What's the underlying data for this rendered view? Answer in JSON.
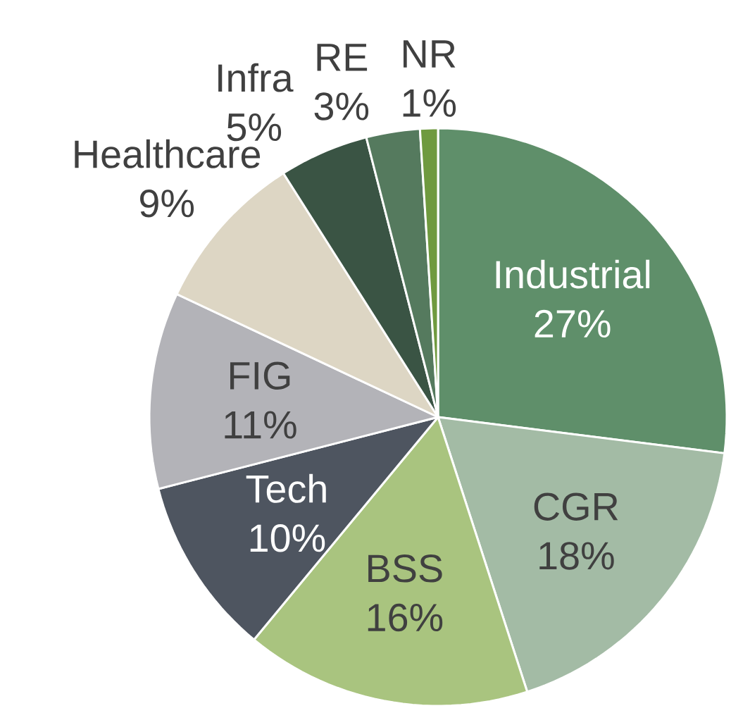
{
  "chart_data": {
    "type": "pie",
    "categories": [
      "Industrial",
      "CGR",
      "BSS",
      "Tech",
      "FIG",
      "Healthcare",
      "Infra",
      "RE",
      "NR"
    ],
    "values": [
      27,
      18,
      16,
      10,
      11,
      9,
      5,
      3,
      1
    ],
    "value_labels": [
      "27%",
      "18%",
      "16%",
      "10%",
      "11%",
      "9%",
      "5%",
      "3%",
      "1%"
    ],
    "colors": [
      "#5f8f6a",
      "#a3bba5",
      "#a9c47f",
      "#4e5560",
      "#b3b3b8",
      "#ddd6c4",
      "#3a5444",
      "#557a5e",
      "#6f9a3f"
    ]
  }
}
